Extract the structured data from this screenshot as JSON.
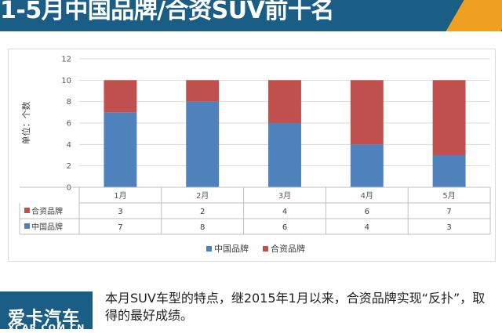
{
  "header": {
    "title": "1-5月中国品牌/合资SUV前十名"
  },
  "chart_data": {
    "type": "bar",
    "stacked": true,
    "categories": [
      "1月",
      "2月",
      "3月",
      "4月",
      "5月"
    ],
    "series": [
      {
        "name": "中国品牌",
        "values": [
          7,
          8,
          6,
          4,
          3
        ],
        "color": "#4f81bd"
      },
      {
        "name": "合资品牌",
        "values": [
          3,
          2,
          4,
          6,
          7
        ],
        "color": "#c0504d"
      }
    ],
    "ylabel": "单位：个数",
    "ylim": [
      0,
      12
    ],
    "yticks": [
      0,
      2,
      4,
      6,
      8,
      10,
      12
    ],
    "legend": "bottom",
    "data_table": true
  },
  "footer": {
    "logo_cn": "爱卡汽车",
    "logo_en": "XCAR.COM.CN",
    "note": "本月SUV车型的特点，继2015年1月以来，合资品牌实现“反扑”，取得的最好成绩。"
  }
}
